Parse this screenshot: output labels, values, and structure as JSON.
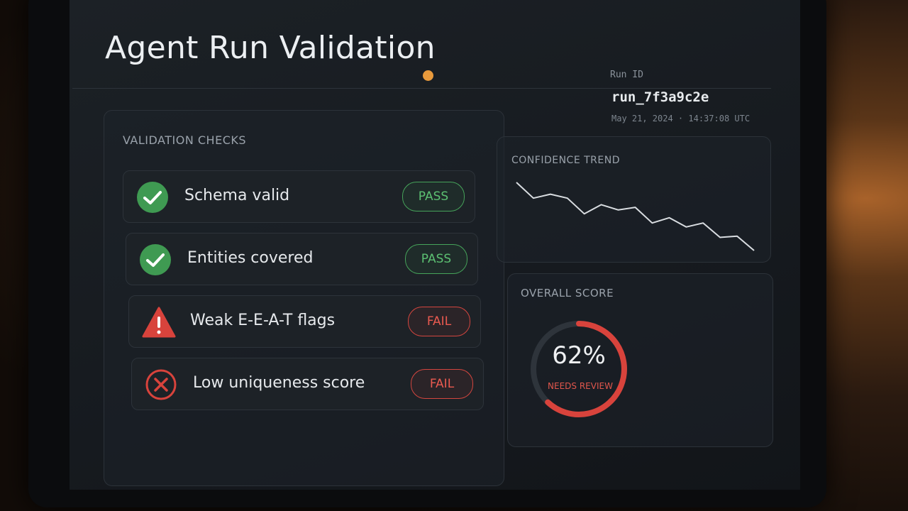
{
  "header": {
    "title": "Agent Run Validation",
    "run_id_label": "Run ID",
    "run_id": "run_7f3a9c2e",
    "timestamp": "May 21, 2024 · 14:37:08 UTC"
  },
  "validation_checks": {
    "title": "VALIDATION CHECKS",
    "items": [
      {
        "label": "Schema valid",
        "status": "PASS"
      },
      {
        "label": "Entities covered",
        "status": "PASS"
      },
      {
        "label": "Weak E-E-A-T flags",
        "status": "FAIL"
      },
      {
        "label": "Low uniqueness score",
        "status": "FAIL"
      }
    ]
  },
  "confidence_trend": {
    "title": "CONFIDENCE TREND",
    "values": [
      92,
      80,
      83,
      80,
      68,
      75,
      71,
      73,
      61,
      65,
      58,
      61,
      50,
      51,
      40
    ]
  },
  "overall_score": {
    "title": "OVERALL SCORE",
    "value": 62,
    "value_label": "62%",
    "status": "NEEDS REVIEW"
  }
}
